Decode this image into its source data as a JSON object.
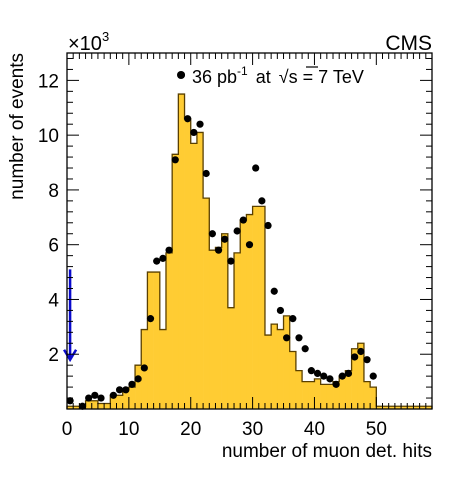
{
  "chart_data": {
    "type": "bar",
    "experiment_label": "CMS",
    "annotation": {
      "lumi_value": "36 pb",
      "lumi_exp": "-1",
      "at_word": "at",
      "sqrt_symbol": "√",
      "sqrt_arg": "s",
      "energy": "= 7 TeV"
    },
    "xlabel": "number of muon det. hits",
    "ylabel": "number of events",
    "y_multiplier_base": "×10",
    "y_multiplier_exp": "3",
    "xlim": [
      0,
      59
    ],
    "ylim": [
      0,
      13
    ],
    "x_ticks": [
      0,
      10,
      20,
      30,
      40,
      50
    ],
    "y_ticks": [
      2,
      4,
      6,
      8,
      10,
      12
    ],
    "grid": false,
    "histogram": {
      "bin_width": 1,
      "values": [
        0.1,
        0.1,
        0.1,
        0.3,
        0.3,
        0.2,
        0.2,
        0.5,
        0.5,
        0.7,
        0.8,
        1.6,
        2.9,
        5.0,
        5.0,
        2.9,
        5.7,
        9.3,
        11.5,
        10.6,
        9.7,
        10.1,
        7.7,
        5.8,
        5.9,
        6.4,
        3.7,
        5.7,
        6.9,
        7.1,
        7.4,
        7.4,
        2.7,
        3.1,
        2.9,
        3.4,
        2.1,
        1.4,
        1.0,
        1.0,
        1.1,
        0.9,
        0.9,
        1.0,
        1.2,
        1.4,
        2.2,
        2.4,
        1.0,
        0.8,
        0.1,
        0.1,
        0.1,
        0.1,
        0.1,
        0.1,
        0.1,
        0.1,
        0.1
      ],
      "fill_color": "#ffcc33",
      "line_color": "#5a4000"
    },
    "data_points": {
      "x": [
        0.5,
        2.5,
        3.5,
        4.5,
        5.5,
        7.5,
        8.5,
        9.5,
        10.5,
        11.5,
        12.5,
        13.5,
        14.5,
        15.5,
        16.5,
        17.5,
        18.5,
        19.5,
        20.5,
        21.5,
        22.5,
        23.5,
        24.5,
        25.5,
        26.5,
        27.5,
        28.5,
        29.5,
        30.5,
        31.5,
        32.5,
        33.5,
        34.5,
        35.5,
        36.5,
        37.5,
        38.5,
        39.5,
        40.5,
        41.5,
        42.5,
        43.5,
        44.5,
        45.5,
        46.5,
        47.5,
        48.5,
        49.5
      ],
      "y": [
        0.3,
        0.1,
        0.4,
        0.5,
        0.4,
        0.5,
        0.7,
        0.7,
        0.9,
        1.1,
        1.5,
        3.3,
        5.4,
        5.5,
        5.8,
        9.1,
        12.2,
        10.6,
        10.1,
        10.4,
        8.6,
        6.4,
        5.8,
        6.2,
        5.4,
        6.5,
        6.9,
        6.0,
        8.8,
        7.6,
        6.7,
        4.3,
        3.6,
        2.6,
        3.3,
        2.6,
        2.2,
        1.4,
        1.3,
        1.2,
        1.1,
        0.9,
        1.2,
        1.3,
        1.9,
        2.1,
        1.8,
        1.2
      ],
      "marker_color": "#000000"
    },
    "arrow": {
      "x": 0.5,
      "y_from": 5.1,
      "y_to": 1.8,
      "color": "#0a0acc"
    }
  }
}
